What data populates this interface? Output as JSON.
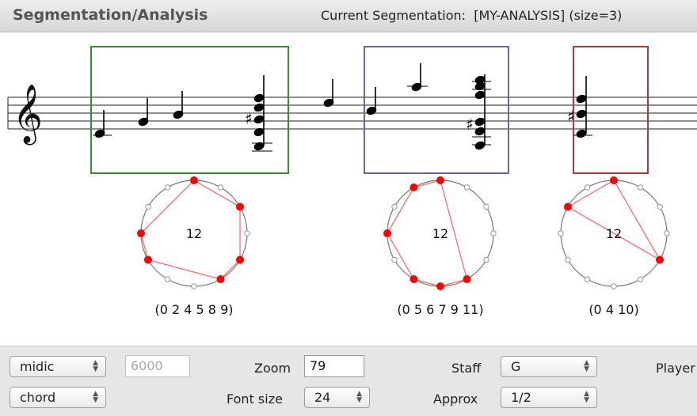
{
  "header": {
    "title": "Segmentation/Analysis",
    "segmentation_info": "Current Segmentation:  [MY-ANALYSIS] (size=3)"
  },
  "score": {
    "clef": "treble-clef",
    "segment_colors": [
      "#3a8a3a",
      "#6a6a9a",
      "#b03a3a"
    ]
  },
  "analyses": [
    {
      "center": "12",
      "pcs": [
        0,
        2,
        4,
        5,
        8,
        9
      ],
      "label": "(0 2 4 5 8 9)"
    },
    {
      "center": "12",
      "pcs": [
        0,
        5,
        6,
        7,
        9,
        11
      ],
      "label": "(0 5 6 7 9 11)"
    },
    {
      "center": "12",
      "pcs": [
        0,
        4,
        10
      ],
      "label": "(0 4 10)"
    }
  ],
  "colors": {
    "active_point": "#ff0000",
    "polygon": "#ff6a6a"
  },
  "controls": {
    "mode_select": "midic",
    "tempo_field": "6000",
    "zoom_label": "Zoom",
    "zoom_value": "79",
    "staff_label": "Staff",
    "staff_value": "G",
    "player_label": "Player",
    "view_select": "chord",
    "font_size_label": "Font size",
    "font_size_value": "24",
    "approx_label": "Approx",
    "approx_value": "1/2"
  }
}
